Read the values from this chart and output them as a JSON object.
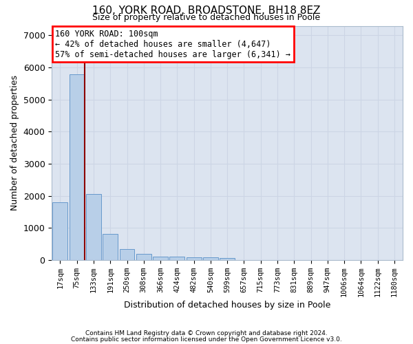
{
  "title_line1": "160, YORK ROAD, BROADSTONE, BH18 8EZ",
  "title_line2": "Size of property relative to detached houses in Poole",
  "xlabel": "Distribution of detached houses by size in Poole",
  "ylabel": "Number of detached properties",
  "bar_color": "#b8cfe8",
  "bar_edge_color": "#6699cc",
  "grid_color": "#ccd5e5",
  "background_color": "#dce4f0",
  "annotation_text": "160 YORK ROAD: 100sqm\n← 42% of detached houses are smaller (4,647)\n57% of semi-detached houses are larger (6,341) →",
  "annotation_box_color": "white",
  "annotation_box_edge": "red",
  "marker_line_color": "#8b0000",
  "categories": [
    "17sqm",
    "75sqm",
    "133sqm",
    "191sqm",
    "250sqm",
    "308sqm",
    "366sqm",
    "424sqm",
    "482sqm",
    "540sqm",
    "599sqm",
    "657sqm",
    "715sqm",
    "773sqm",
    "831sqm",
    "889sqm",
    "947sqm",
    "1006sqm",
    "1064sqm",
    "1122sqm",
    "1180sqm"
  ],
  "values": [
    1800,
    5780,
    2050,
    820,
    350,
    190,
    115,
    100,
    90,
    75,
    55,
    0,
    0,
    0,
    0,
    0,
    0,
    0,
    0,
    0,
    0
  ],
  "ylim": [
    0,
    7300
  ],
  "yticks": [
    0,
    1000,
    2000,
    3000,
    4000,
    5000,
    6000,
    7000
  ],
  "footer_line1": "Contains HM Land Registry data © Crown copyright and database right 2024.",
  "footer_line2": "Contains public sector information licensed under the Open Government Licence v3.0."
}
